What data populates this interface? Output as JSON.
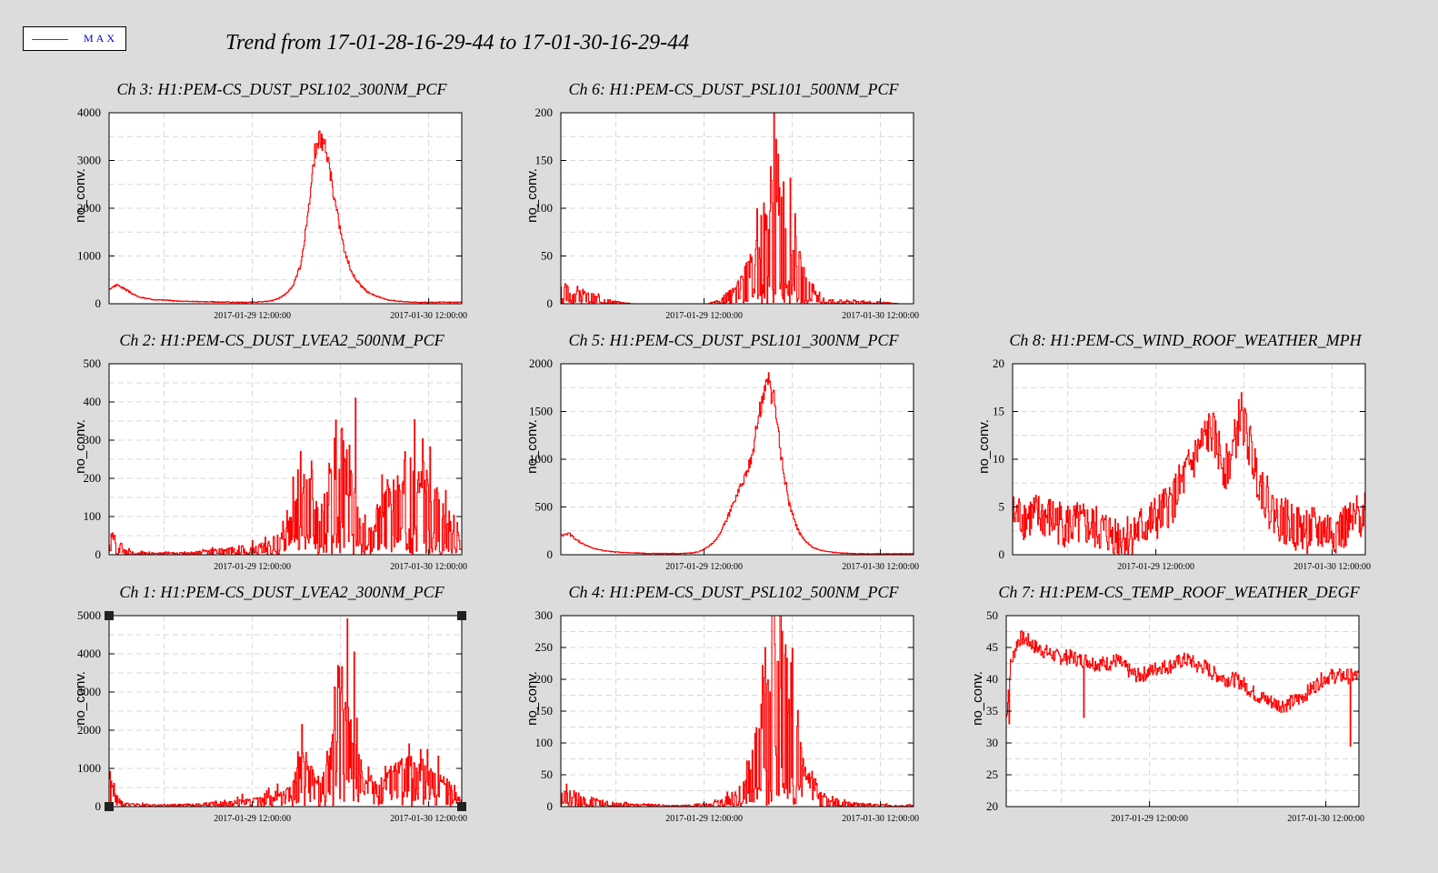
{
  "legend": {
    "label": "MAX",
    "line_color": "#ff0000"
  },
  "main_title": "Trend from 17-01-28-16-29-44 to 17-01-30-16-29-44",
  "colors": {
    "series": "#ff0000",
    "background": "#dcdcdc",
    "plot_bg": "#ffffff",
    "grid": "#d8d8d8"
  },
  "chart_data": [
    {
      "id": "ch3",
      "type": "line",
      "title": "Ch 3: H1:PEM-CS_DUST_PSL102_300NM_PCF",
      "ylabel": "no_conv.",
      "ylim": [
        0,
        4000
      ],
      "yticks": [
        0,
        1000,
        2000,
        3000,
        4000
      ],
      "xlim": [
        0,
        48
      ],
      "xticks": [
        {
          "x": 19.5,
          "label": "2017-01-29 12:00:00"
        },
        {
          "x": 43.5,
          "label": "2017-01-30 12:00:00"
        }
      ],
      "series": [
        {
          "style": "smooth",
          "x": [
            0,
            1,
            2,
            3,
            4,
            5,
            6,
            7,
            8,
            9,
            10,
            11,
            12,
            13,
            14,
            15,
            16,
            17,
            18,
            19,
            20,
            21,
            22,
            23,
            24,
            25,
            25.5,
            26,
            26.5,
            27,
            27.5,
            28,
            28.5,
            29,
            29.5,
            30,
            30.5,
            31,
            31.5,
            32,
            33,
            34,
            35,
            36,
            37,
            38,
            39,
            40,
            41,
            42,
            43,
            44,
            45,
            46,
            47,
            48
          ],
          "y": [
            300,
            400,
            320,
            220,
            140,
            110,
            90,
            80,
            70,
            60,
            55,
            50,
            45,
            40,
            40,
            35,
            35,
            30,
            30,
            30,
            35,
            40,
            60,
            110,
            200,
            380,
            600,
            800,
            1300,
            1800,
            2600,
            3200,
            3450,
            3400,
            3200,
            2800,
            2300,
            1900,
            1500,
            1100,
            650,
            420,
            260,
            180,
            120,
            80,
            60,
            45,
            35,
            30,
            30,
            30,
            30,
            30,
            30,
            30
          ],
          "jitter": 0.06,
          "seed": 3
        }
      ]
    },
    {
      "id": "ch6",
      "type": "line",
      "title": "Ch 6: H1:PEM-CS_DUST_PSL101_500NM_PCF",
      "ylabel": "no_conv.",
      "ylim": [
        0,
        200
      ],
      "yticks": [
        0,
        50,
        100,
        150,
        200
      ],
      "xlim": [
        0,
        48
      ],
      "xticks": [
        {
          "x": 19.5,
          "label": "2017-01-29 12:00:00"
        },
        {
          "x": 43.5,
          "label": "2017-01-30 12:00:00"
        }
      ],
      "series": [
        {
          "style": "spiky",
          "x": [
            0,
            2,
            4,
            6,
            8,
            10,
            12,
            14,
            16,
            18,
            20,
            22,
            24,
            25,
            26,
            27,
            28,
            29,
            30,
            31,
            32,
            33,
            34,
            35,
            36,
            38,
            40,
            42,
            44,
            46,
            48
          ],
          "y": [
            12,
            8,
            6,
            3,
            1,
            0,
            0,
            0,
            0,
            0,
            0,
            3,
            12,
            20,
            30,
            45,
            65,
            90,
            80,
            55,
            35,
            20,
            10,
            5,
            3,
            2,
            2,
            1,
            1,
            0,
            0
          ],
          "noise": 1.0,
          "seed": 6
        }
      ]
    },
    {
      "id": "ch2",
      "type": "line",
      "title": "Ch 2: H1:PEM-CS_DUST_LVEA2_500NM_PCF",
      "ylabel": "no_conv.",
      "ylim": [
        0,
        500
      ],
      "yticks": [
        0,
        100,
        200,
        300,
        400,
        500
      ],
      "xlim": [
        0,
        48
      ],
      "xticks": [
        {
          "x": 19.5,
          "label": "2017-01-29 12:00:00"
        },
        {
          "x": 43.5,
          "label": "2017-01-30 12:00:00"
        }
      ],
      "series": [
        {
          "style": "spiky",
          "x": [
            0,
            1,
            2,
            4,
            6,
            8,
            10,
            12,
            14,
            16,
            18,
            20,
            22,
            24,
            25,
            26,
            27,
            28,
            29,
            30,
            31,
            32,
            33,
            34,
            35,
            36,
            37,
            38,
            39,
            40,
            41,
            42,
            43,
            44,
            45,
            46,
            47,
            48
          ],
          "y": [
            60,
            20,
            8,
            4,
            3,
            3,
            3,
            5,
            8,
            10,
            12,
            15,
            20,
            40,
            80,
            150,
            110,
            90,
            80,
            130,
            200,
            170,
            110,
            70,
            50,
            50,
            80,
            100,
            120,
            130,
            150,
            140,
            140,
            110,
            90,
            70,
            40,
            30
          ],
          "noise": 0.9,
          "spikes": [
            {
              "x": 33.5,
              "y": 410
            },
            {
              "x": 27.5,
              "y": 245
            }
          ],
          "seed": 2
        }
      ]
    },
    {
      "id": "ch5",
      "type": "line",
      "title": "Ch 5: H1:PEM-CS_DUST_PSL101_300NM_PCF",
      "ylabel": "no_conv.",
      "ylim": [
        0,
        2000
      ],
      "yticks": [
        0,
        500,
        1000,
        1500,
        2000
      ],
      "xlim": [
        0,
        48
      ],
      "xticks": [
        {
          "x": 19.5,
          "label": "2017-01-29 12:00:00"
        },
        {
          "x": 43.5,
          "label": "2017-01-30 12:00:00"
        }
      ],
      "series": [
        {
          "style": "smooth",
          "x": [
            0,
            1,
            2,
            3,
            4,
            5,
            6,
            7,
            8,
            9,
            10,
            11,
            12,
            13,
            14,
            15,
            16,
            17,
            18,
            19,
            20,
            21,
            22,
            23,
            24,
            25,
            26,
            27,
            28,
            29,
            30,
            31,
            32,
            33,
            34,
            35,
            36,
            37,
            38,
            39,
            40,
            41,
            42,
            43,
            44,
            45,
            46,
            47,
            48
          ],
          "y": [
            200,
            220,
            160,
            110,
            80,
            55,
            40,
            30,
            25,
            20,
            18,
            15,
            12,
            12,
            12,
            12,
            12,
            15,
            20,
            40,
            80,
            150,
            280,
            450,
            650,
            820,
            1050,
            1500,
            1850,
            1600,
            1000,
            550,
            300,
            160,
            90,
            55,
            35,
            25,
            18,
            14,
            12,
            10,
            10,
            10,
            10,
            10,
            10,
            10,
            10
          ],
          "jitter": 0.07,
          "seed": 5
        }
      ]
    },
    {
      "id": "ch8",
      "type": "line",
      "title": "Ch 8: H1:PEM-CS_WIND_ROOF_WEATHER_MPH",
      "ylabel": "no_conv.",
      "ylim": [
        0,
        20
      ],
      "yticks": [
        0,
        5,
        10,
        15,
        20
      ],
      "xlim": [
        0,
        48
      ],
      "xticks": [
        {
          "x": 19.5,
          "label": "2017-01-29 12:00:00"
        },
        {
          "x": 43.5,
          "label": "2017-01-30 12:00:00"
        }
      ],
      "series": [
        {
          "style": "noisy",
          "x": [
            0,
            2,
            4,
            6,
            8,
            10,
            12,
            14,
            16,
            18,
            20,
            22,
            24,
            26,
            27,
            28,
            29,
            30,
            31,
            32,
            33,
            34,
            35,
            36,
            38,
            40,
            42,
            44,
            46,
            48
          ],
          "y": [
            4,
            4,
            4,
            3.5,
            3,
            3,
            2.5,
            2,
            2,
            3,
            4,
            6,
            9,
            12,
            13,
            11,
            9,
            11,
            15,
            12,
            9,
            7,
            5,
            4,
            3,
            2.5,
            2.5,
            2.5,
            3,
            5
          ],
          "amp": 2.5,
          "seed": 8
        }
      ]
    },
    {
      "id": "ch1",
      "type": "line",
      "title": "Ch 1: H1:PEM-CS_DUST_LVEA2_300NM_PCF",
      "ylabel": "no_conv.",
      "ylim": [
        0,
        5000
      ],
      "yticks": [
        0,
        1000,
        2000,
        3000,
        4000,
        5000
      ],
      "xlim": [
        0,
        48
      ],
      "xticks": [
        {
          "x": 19.5,
          "label": "2017-01-29 12:00:00"
        },
        {
          "x": 43.5,
          "label": "2017-01-30 12:00:00"
        }
      ],
      "series": [
        {
          "style": "spiky",
          "x": [
            0,
            1,
            2,
            4,
            6,
            8,
            10,
            12,
            14,
            16,
            18,
            20,
            22,
            24,
            25,
            26,
            27,
            28,
            29,
            30,
            31,
            32,
            33,
            34,
            35,
            36,
            37,
            38,
            39,
            40,
            41,
            42,
            43,
            44,
            45,
            46,
            47,
            48
          ],
          "y": [
            700,
            200,
            80,
            50,
            40,
            40,
            50,
            60,
            80,
            100,
            130,
            160,
            200,
            300,
            500,
            1300,
            900,
            600,
            550,
            1000,
            2800,
            2400,
            1600,
            800,
            500,
            450,
            600,
            700,
            800,
            900,
            1000,
            900,
            850,
            700,
            600,
            500,
            300,
            150
          ],
          "noise": 0.45,
          "spikes": [
            {
              "x": 33.3,
              "y": 4050
            },
            {
              "x": 26.2,
              "y": 2150
            }
          ],
          "seed": 1
        }
      ]
    },
    {
      "id": "ch4",
      "type": "line",
      "title": "Ch 4: H1:PEM-CS_DUST_PSL102_500NM_PCF",
      "ylabel": "no_conv.",
      "ylim": [
        0,
        300
      ],
      "yticks": [
        0,
        50,
        100,
        150,
        200,
        250,
        300
      ],
      "xlim": [
        0,
        48
      ],
      "xticks": [
        {
          "x": 19.5,
          "label": "2017-01-29 12:00:00"
        },
        {
          "x": 43.5,
          "label": "2017-01-30 12:00:00"
        }
      ],
      "series": [
        {
          "style": "spiky",
          "x": [
            0,
            2,
            4,
            6,
            8,
            10,
            12,
            14,
            16,
            18,
            20,
            22,
            24,
            25,
            26,
            27,
            28,
            29,
            30,
            31,
            32,
            33,
            34,
            35,
            36,
            38,
            40,
            42,
            44,
            46,
            48
          ],
          "y": [
            18,
            10,
            8,
            5,
            3,
            2,
            2,
            1,
            1,
            2,
            3,
            6,
            15,
            30,
            55,
            90,
            150,
            200,
            170,
            120,
            80,
            45,
            25,
            12,
            8,
            5,
            3,
            2,
            2,
            1,
            2
          ],
          "noise": 1.0,
          "spikes": [
            {
              "x": 29.5,
              "y": 228
            }
          ],
          "seed": 4
        }
      ]
    },
    {
      "id": "ch7",
      "type": "line",
      "title": "Ch 7: H1:PEM-CS_TEMP_ROOF_WEATHER_DEGF",
      "ylabel": "no_conv.",
      "ylim": [
        20,
        50
      ],
      "yticks": [
        20,
        25,
        30,
        35,
        40,
        45,
        50
      ],
      "xlim": [
        0,
        48
      ],
      "xticks": [
        {
          "x": 19.5,
          "label": "2017-01-29 12:00:00"
        },
        {
          "x": 43.5,
          "label": "2017-01-30 12:00:00"
        }
      ],
      "series": [
        {
          "style": "noisy",
          "x": [
            0,
            0.5,
            1,
            1.5,
            2,
            3,
            4,
            5,
            6,
            7,
            8,
            9,
            10,
            11,
            12,
            13,
            14,
            15,
            16,
            17,
            18,
            19,
            20,
            21,
            22,
            23,
            24,
            25,
            26,
            27,
            28,
            29,
            30,
            31,
            32,
            33,
            34,
            35,
            36,
            37,
            38,
            39,
            40,
            41,
            42,
            43,
            44,
            45,
            46,
            47,
            48
          ],
          "y": [
            34,
            42,
            44,
            46,
            46.5,
            46,
            45,
            44.5,
            44,
            43.5,
            43.5,
            43.5,
            43,
            43,
            42.5,
            42.5,
            42.5,
            43,
            42,
            41,
            40.5,
            41,
            41.5,
            42,
            42,
            42.5,
            43,
            43,
            42,
            42,
            41,
            40.5,
            40,
            40,
            39.5,
            38.5,
            37.5,
            37,
            36.5,
            36,
            36,
            36.5,
            37,
            38,
            39,
            40,
            40.5,
            40.5,
            40.5,
            40.5,
            40.5
          ],
          "amp": 1.2,
          "dips": [
            {
              "x": 10.5,
              "y": 34
            },
            {
              "x": 46.8,
              "y": 29.5
            },
            {
              "x": 0.4,
              "y": 33
            }
          ],
          "seed": 7
        }
      ]
    }
  ]
}
